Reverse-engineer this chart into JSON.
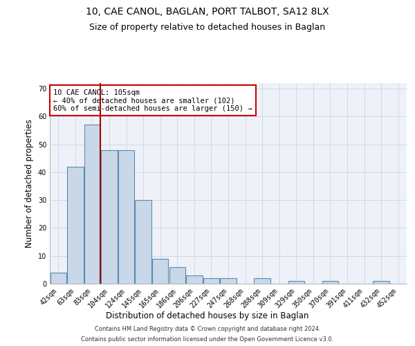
{
  "title": "10, CAE CANOL, BAGLAN, PORT TALBOT, SA12 8LX",
  "subtitle": "Size of property relative to detached houses in Baglan",
  "xlabel": "Distribution of detached houses by size in Baglan",
  "ylabel": "Number of detached properties",
  "footnote1": "Contains HM Land Registry data © Crown copyright and database right 2024.",
  "footnote2": "Contains public sector information licensed under the Open Government Licence v3.0.",
  "categories": [
    "42sqm",
    "63sqm",
    "83sqm",
    "104sqm",
    "124sqm",
    "145sqm",
    "165sqm",
    "186sqm",
    "206sqm",
    "227sqm",
    "247sqm",
    "268sqm",
    "288sqm",
    "309sqm",
    "329sqm",
    "350sqm",
    "370sqm",
    "391sqm",
    "411sqm",
    "432sqm",
    "452sqm"
  ],
  "values": [
    4,
    42,
    57,
    48,
    48,
    30,
    9,
    6,
    3,
    2,
    2,
    0,
    2,
    0,
    1,
    0,
    1,
    0,
    0,
    1,
    0
  ],
  "bar_color": "#c8d8e8",
  "bar_edge_color": "#5a8ab0",
  "bar_linewidth": 0.8,
  "grid_color": "#d0d8e8",
  "bg_color": "#eef2f8",
  "red_line_index": 2,
  "red_line_color": "#aa0000",
  "annotation_text": "10 CAE CANOL: 105sqm\n← 40% of detached houses are smaller (102)\n60% of semi-detached houses are larger (150) →",
  "annotation_box_color": "#ffffff",
  "annotation_box_edgecolor": "#cc0000",
  "ylim": [
    0,
    72
  ],
  "yticks": [
    0,
    10,
    20,
    30,
    40,
    50,
    60,
    70
  ],
  "title_fontsize": 10,
  "subtitle_fontsize": 9,
  "axis_label_fontsize": 8.5,
  "tick_fontsize": 7,
  "annotation_fontsize": 7.5,
  "footnote_fontsize": 6
}
